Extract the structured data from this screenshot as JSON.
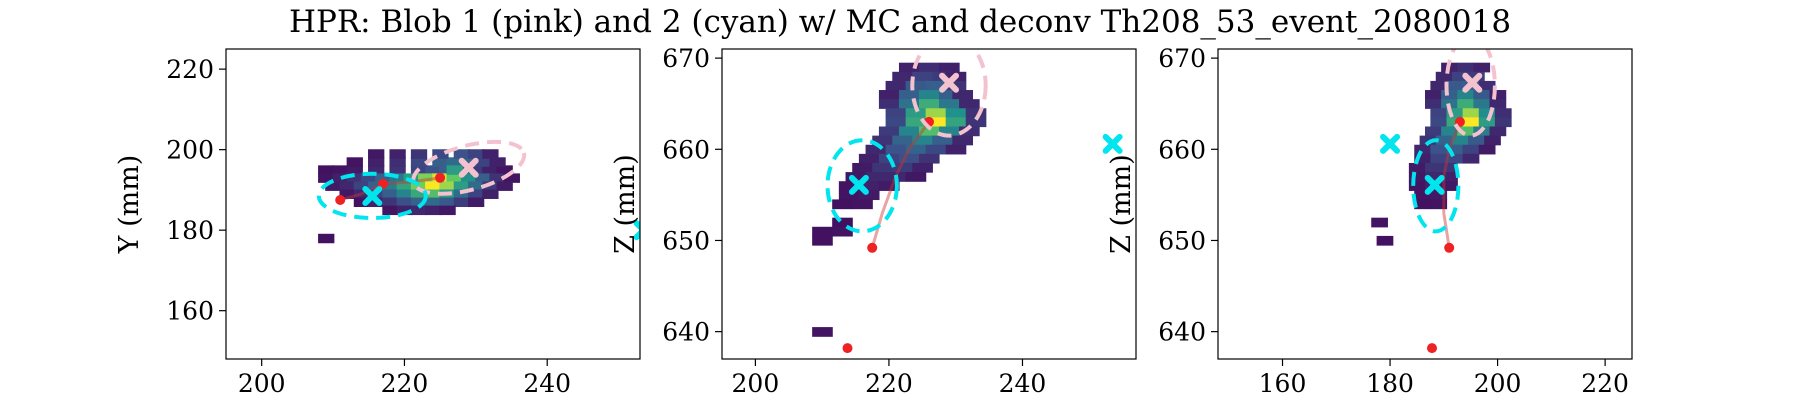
{
  "figure": {
    "title": "HPR: Blob 1 (pink) and 2 (cyan) w/ MC and deconv Th208_53_event_2080018"
  },
  "colors": {
    "blob1": "#f4c2cf",
    "blob2": "#00e5ee",
    "mc_points": "#ee2222",
    "mc_track": "#cc3333",
    "colormap": "viridis"
  },
  "chart_data": [
    {
      "type": "heatmap",
      "panel": "xy",
      "xlabel": "",
      "ylabel": "Y (mm)",
      "xlim": [
        195,
        253
      ],
      "ylim": [
        148,
        225
      ],
      "xticks": [
        200,
        220,
        240
      ],
      "yticks": [
        160,
        180,
        200,
        220
      ],
      "cells": [
        [
          209,
          195,
          0.05
        ],
        [
          211,
          195,
          0.06
        ],
        [
          213,
          195,
          0.08
        ],
        [
          216,
          195,
          0.12
        ],
        [
          219,
          195,
          0.15
        ],
        [
          222,
          195,
          0.2
        ],
        [
          224,
          195,
          0.25
        ],
        [
          226,
          195,
          0.3
        ],
        [
          228,
          195,
          0.28
        ],
        [
          230,
          195,
          0.18
        ],
        [
          232,
          195,
          0.1
        ],
        [
          234,
          195,
          0.06
        ],
        [
          213,
          197,
          0.06
        ],
        [
          216,
          197,
          0.1
        ],
        [
          219,
          197,
          0.14
        ],
        [
          222,
          197,
          0.22
        ],
        [
          225,
          197,
          0.3
        ],
        [
          227,
          197,
          0.35
        ],
        [
          229,
          197,
          0.32
        ],
        [
          231,
          197,
          0.2
        ],
        [
          233,
          197,
          0.1
        ],
        [
          216,
          199,
          0.07
        ],
        [
          219,
          199,
          0.1
        ],
        [
          222,
          199,
          0.16
        ],
        [
          225,
          199,
          0.22
        ],
        [
          228,
          199,
          0.25
        ],
        [
          230,
          199,
          0.2
        ],
        [
          232,
          199,
          0.1
        ],
        [
          209,
          193,
          0.06
        ],
        [
          211,
          193,
          0.1
        ],
        [
          213,
          193,
          0.15
        ],
        [
          215,
          193,
          0.22
        ],
        [
          217,
          193,
          0.3
        ],
        [
          219,
          193,
          0.4
        ],
        [
          221,
          193,
          0.55
        ],
        [
          223,
          193,
          0.8
        ],
        [
          225,
          193,
          0.95
        ],
        [
          227,
          193,
          0.75
        ],
        [
          229,
          193,
          0.5
        ],
        [
          231,
          193,
          0.3
        ],
        [
          233,
          193,
          0.15
        ],
        [
          235,
          193,
          0.06
        ],
        [
          210,
          191,
          0.08
        ],
        [
          212,
          191,
          0.12
        ],
        [
          214,
          191,
          0.2
        ],
        [
          216,
          191,
          0.3
        ],
        [
          218,
          191,
          0.42
        ],
        [
          220,
          191,
          0.58
        ],
        [
          222,
          191,
          0.78
        ],
        [
          224,
          191,
          1.0
        ],
        [
          226,
          191,
          0.85
        ],
        [
          228,
          191,
          0.55
        ],
        [
          230,
          191,
          0.35
        ],
        [
          232,
          191,
          0.18
        ],
        [
          234,
          191,
          0.08
        ],
        [
          212,
          189,
          0.07
        ],
        [
          214,
          189,
          0.12
        ],
        [
          216,
          189,
          0.2
        ],
        [
          218,
          189,
          0.3
        ],
        [
          220,
          189,
          0.45
        ],
        [
          222,
          189,
          0.6
        ],
        [
          224,
          189,
          0.7
        ],
        [
          226,
          189,
          0.55
        ],
        [
          228,
          189,
          0.35
        ],
        [
          230,
          189,
          0.2
        ],
        [
          232,
          189,
          0.1
        ],
        [
          214,
          187,
          0.05
        ],
        [
          216,
          187,
          0.1
        ],
        [
          218,
          187,
          0.16
        ],
        [
          220,
          187,
          0.24
        ],
        [
          222,
          187,
          0.32
        ],
        [
          224,
          187,
          0.35
        ],
        [
          226,
          187,
          0.28
        ],
        [
          228,
          187,
          0.18
        ],
        [
          230,
          187,
          0.08
        ],
        [
          218,
          185,
          0.06
        ],
        [
          220,
          185,
          0.1
        ],
        [
          222,
          185,
          0.12
        ],
        [
          224,
          185,
          0.1
        ],
        [
          226,
          185,
          0.07
        ],
        [
          209,
          178,
          0.05
        ],
        [
          227,
          195,
          0.55
        ]
      ],
      "cell_size": [
        2.2,
        2.2
      ],
      "mc_points": [
        [
          211,
          187.5
        ],
        [
          217,
          191.5
        ],
        [
          225,
          193
        ]
      ],
      "mc_track": [
        [
          211,
          187.5
        ],
        [
          214,
          189
        ],
        [
          217,
          191.5
        ],
        [
          221,
          192
        ],
        [
          225,
          193
        ]
      ],
      "blobs": [
        {
          "name": "blob1",
          "x": 229,
          "y": 195.5,
          "rx": 8,
          "ry": 5.5,
          "angle": -15
        },
        {
          "name": "blob2",
          "x": 215.5,
          "y": 188.5,
          "rx": 7.5,
          "ry": 5.5,
          "angle": 0
        }
      ],
      "deconv_points": [
        {
          "name": "blob1",
          "x": 229,
          "y": 195.5
        },
        {
          "name": "blob2",
          "x": 215.5,
          "y": 188.5
        },
        {
          "name": "blob2",
          "x": 253.5,
          "y": 180
        }
      ]
    },
    {
      "type": "heatmap",
      "panel": "xz",
      "xlabel": "",
      "ylabel": "Z (mm)",
      "xlim": [
        195,
        257
      ],
      "ylim": [
        637,
        671
      ],
      "xticks": [
        200,
        220,
        240
      ],
      "yticks": [
        640,
        650,
        660,
        670
      ],
      "cells": [
        [
          223,
          669,
          0.1
        ],
        [
          226,
          669,
          0.14
        ],
        [
          229,
          669,
          0.1
        ],
        [
          222,
          668,
          0.12
        ],
        [
          225,
          668,
          0.2
        ],
        [
          228,
          668,
          0.18
        ],
        [
          230,
          668,
          0.1
        ],
        [
          221,
          667,
          0.12
        ],
        [
          224,
          667,
          0.28
        ],
        [
          227,
          667,
          0.3
        ],
        [
          230,
          667,
          0.15
        ],
        [
          220,
          666,
          0.1
        ],
        [
          223,
          666,
          0.3
        ],
        [
          226,
          666,
          0.45
        ],
        [
          229,
          666,
          0.3
        ],
        [
          231,
          666,
          0.12
        ],
        [
          220,
          665,
          0.14
        ],
        [
          223,
          665,
          0.38
        ],
        [
          226,
          665,
          0.62
        ],
        [
          229,
          665,
          0.4
        ],
        [
          232,
          665,
          0.12
        ],
        [
          221,
          664,
          0.2
        ],
        [
          224,
          664,
          0.55
        ],
        [
          227,
          664,
          0.85
        ],
        [
          230,
          664,
          0.5
        ],
        [
          233,
          664,
          0.15
        ],
        [
          221,
          663,
          0.22
        ],
        [
          224,
          663,
          0.6
        ],
        [
          227,
          663,
          1.0
        ],
        [
          230,
          663,
          0.58
        ],
        [
          233,
          663,
          0.16
        ],
        [
          220,
          662,
          0.18
        ],
        [
          223,
          662,
          0.45
        ],
        [
          226,
          662,
          0.7
        ],
        [
          229,
          662,
          0.45
        ],
        [
          232,
          662,
          0.14
        ],
        [
          219,
          661,
          0.15
        ],
        [
          222,
          661,
          0.32
        ],
        [
          225,
          661,
          0.45
        ],
        [
          228,
          661,
          0.3
        ],
        [
          231,
          661,
          0.12
        ],
        [
          218,
          660,
          0.12
        ],
        [
          221,
          660,
          0.25
        ],
        [
          224,
          660,
          0.32
        ],
        [
          227,
          660,
          0.22
        ],
        [
          230,
          660,
          0.1
        ],
        [
          217,
          659,
          0.1
        ],
        [
          220,
          659,
          0.2
        ],
        [
          223,
          659,
          0.24
        ],
        [
          226,
          659,
          0.15
        ],
        [
          216,
          658,
          0.08
        ],
        [
          219,
          658,
          0.16
        ],
        [
          222,
          658,
          0.18
        ],
        [
          225,
          658,
          0.1
        ],
        [
          215,
          657,
          0.07
        ],
        [
          218,
          657,
          0.12
        ],
        [
          221,
          657,
          0.12
        ],
        [
          224,
          657,
          0.07
        ],
        [
          214,
          656,
          0.06
        ],
        [
          217,
          656,
          0.1
        ],
        [
          220,
          656,
          0.08
        ],
        [
          214,
          655,
          0.06
        ],
        [
          217,
          655,
          0.08
        ],
        [
          213,
          654,
          0.05
        ],
        [
          216,
          654,
          0.06
        ],
        [
          213,
          652,
          0.05
        ],
        [
          210,
          651,
          0.05
        ],
        [
          213,
          651,
          0.06
        ],
        [
          210,
          650,
          0.05
        ],
        [
          210,
          640,
          0.06
        ]
      ],
      "cell_size": [
        3,
        1
      ],
      "mc_points": [
        [
          217.5,
          649.2
        ],
        [
          213.8,
          638.2
        ],
        [
          226,
          663
        ]
      ],
      "mc_track": [
        [
          217.5,
          649.2
        ],
        [
          219,
          653
        ],
        [
          221,
          657
        ],
        [
          223,
          660
        ],
        [
          226,
          663
        ]
      ],
      "blobs": [
        {
          "name": "blob1",
          "x": 229,
          "y": 667,
          "rx": 5.5,
          "ry": 5.5,
          "angle": 0
        },
        {
          "name": "blob2",
          "x": 216,
          "y": 656,
          "rx": 5.2,
          "ry": 5,
          "angle": 0
        }
      ],
      "deconv_points": [
        {
          "name": "blob1",
          "x": 229,
          "y": 667.3
        },
        {
          "name": "blob2",
          "x": 215.5,
          "y": 656.1
        },
        {
          "name": "blob2",
          "x": 253.5,
          "y": 660.6
        }
      ]
    },
    {
      "type": "heatmap",
      "panel": "yz",
      "xlabel": "",
      "ylabel": "Z (mm)",
      "xlim": [
        148,
        225
      ],
      "ylim": [
        637,
        671
      ],
      "xticks": [
        160,
        180,
        200,
        220
      ],
      "yticks": [
        640,
        650,
        660,
        670
      ],
      "cells": [
        [
          191,
          669,
          0.1
        ],
        [
          194,
          669,
          0.14
        ],
        [
          197,
          669,
          0.1
        ],
        [
          190,
          668,
          0.12
        ],
        [
          193,
          668,
          0.2
        ],
        [
          196,
          668,
          0.18
        ],
        [
          189,
          667,
          0.12
        ],
        [
          192,
          667,
          0.28
        ],
        [
          195,
          667,
          0.3
        ],
        [
          198,
          667,
          0.14
        ],
        [
          188,
          666,
          0.1
        ],
        [
          191,
          666,
          0.3
        ],
        [
          194,
          666,
          0.45
        ],
        [
          197,
          666,
          0.28
        ],
        [
          200,
          666,
          0.1
        ],
        [
          188,
          665,
          0.14
        ],
        [
          191,
          665,
          0.38
        ],
        [
          194,
          665,
          0.62
        ],
        [
          197,
          665,
          0.4
        ],
        [
          200,
          665,
          0.12
        ],
        [
          189,
          664,
          0.2
        ],
        [
          192,
          664,
          0.55
        ],
        [
          195,
          664,
          0.85
        ],
        [
          198,
          664,
          0.48
        ],
        [
          201,
          664,
          0.14
        ],
        [
          189,
          663,
          0.22
        ],
        [
          192,
          663,
          0.6
        ],
        [
          195,
          663,
          1.0
        ],
        [
          198,
          663,
          0.55
        ],
        [
          201,
          663,
          0.16
        ],
        [
          188,
          662,
          0.18
        ],
        [
          191,
          662,
          0.45
        ],
        [
          194,
          662,
          0.7
        ],
        [
          197,
          662,
          0.42
        ],
        [
          200,
          662,
          0.12
        ],
        [
          187,
          661,
          0.15
        ],
        [
          190,
          661,
          0.32
        ],
        [
          193,
          661,
          0.45
        ],
        [
          196,
          661,
          0.28
        ],
        [
          199,
          661,
          0.1
        ],
        [
          186,
          660,
          0.12
        ],
        [
          189,
          660,
          0.25
        ],
        [
          192,
          660,
          0.3
        ],
        [
          195,
          660,
          0.2
        ],
        [
          198,
          660,
          0.08
        ],
        [
          186,
          659,
          0.1
        ],
        [
          189,
          659,
          0.2
        ],
        [
          192,
          659,
          0.22
        ],
        [
          195,
          659,
          0.12
        ],
        [
          185,
          658,
          0.08
        ],
        [
          188,
          658,
          0.16
        ],
        [
          191,
          658,
          0.16
        ],
        [
          185,
          657,
          0.07
        ],
        [
          188,
          657,
          0.12
        ],
        [
          191,
          657,
          0.1
        ],
        [
          185,
          656,
          0.06
        ],
        [
          188,
          656,
          0.1
        ],
        [
          191,
          656,
          0.07
        ],
        [
          186,
          655,
          0.06
        ],
        [
          189,
          655,
          0.08
        ],
        [
          186,
          654,
          0.05
        ],
        [
          189,
          654,
          0.06
        ],
        [
          178,
          652,
          0.06
        ],
        [
          179,
          650,
          0.05
        ]
      ],
      "cell_size": [
        3,
        1
      ],
      "mc_points": [
        [
          191,
          649.2
        ],
        [
          187.8,
          638.2
        ],
        [
          193,
          663
        ]
      ],
      "mc_track": [
        [
          191,
          649.2
        ],
        [
          190,
          653
        ],
        [
          190,
          657
        ],
        [
          191,
          660
        ],
        [
          193,
          663
        ]
      ],
      "blobs": [
        {
          "name": "blob1",
          "x": 195,
          "y": 667,
          "rx": 4.5,
          "ry": 5.5,
          "angle": 0
        },
        {
          "name": "blob2",
          "x": 188.5,
          "y": 656,
          "rx": 4.2,
          "ry": 5,
          "angle": 0
        }
      ],
      "deconv_points": [
        {
          "name": "blob1",
          "x": 195.3,
          "y": 667.3
        },
        {
          "name": "blob2",
          "x": 188.3,
          "y": 656.1
        },
        {
          "name": "blob2",
          "x": 180,
          "y": 660.6
        }
      ]
    }
  ]
}
